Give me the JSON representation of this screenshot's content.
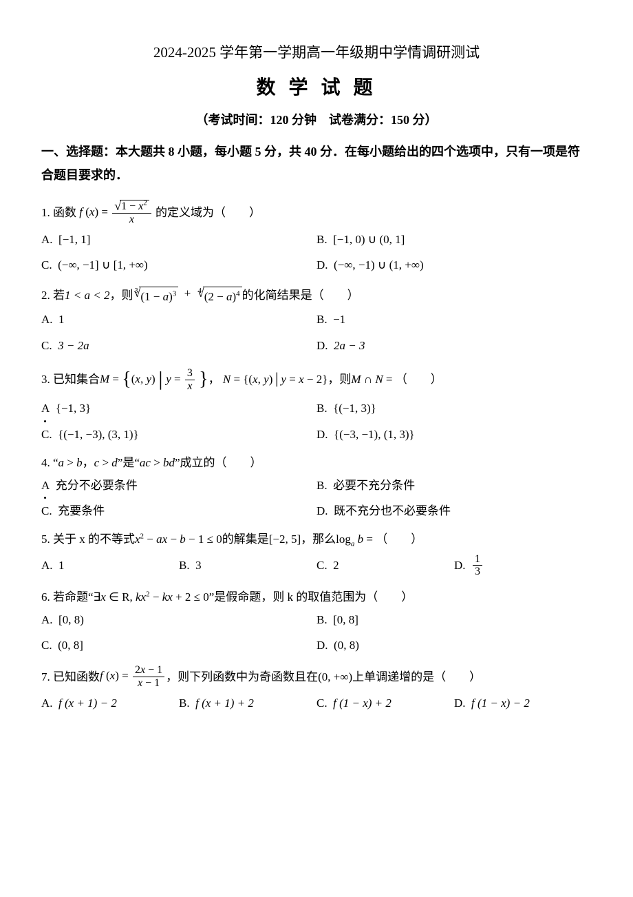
{
  "header": {
    "line1": "2024-2025 学年第一学期高一年级期中学情调研测试",
    "line2": "数 学 试 题",
    "line3": "（考试时间：120 分钟　试卷满分：150 分）",
    "section": "一、选择题：本大题共 8 小题，每小题 5 分，共 40 分．在每小题给出的四个选项中，只有一项是符合题目要求的．"
  },
  "q1": {
    "num": "1.",
    "pre": "函数",
    "post": "的定义域为（　　）",
    "A": "A.",
    "B": "B.",
    "C": "C.",
    "D": "D.",
    "optA": "[−1, 1]",
    "optB": "[−1, 0) ∪ (0, 1]",
    "optC": "(−∞, −1] ∪ [1, +∞)",
    "optD": "(−∞, −1) ∪ (1, +∞)"
  },
  "q2": {
    "num": "2.",
    "pre": "若 ",
    "cond": "1 < a < 2",
    "mid": "，则 ",
    "post": " 的化简结果是（　　）",
    "A": "A.",
    "B": "B.",
    "C": "C.",
    "D": "D.",
    "optA": "1",
    "optB": "−1",
    "optC": "3 − 2a",
    "optD": "2a − 3"
  },
  "q3": {
    "num": "3.",
    "pre": "已知集合 ",
    "mid1": "，",
    "mid2": "，则 ",
    "post": "（　　）",
    "A": "A",
    "B": "B.",
    "C": "C.",
    "D": "D.",
    "optA": "{−1, 3}",
    "optB": "{(−1, 3)}",
    "optC": "{(−1, −3), (3, 1)}",
    "optD": "{(−3, −1), (1, 3)}"
  },
  "q4": {
    "num": "4.",
    "text": "“a > b，c > d”是“ac > bd”成立的（　　）",
    "A": "A",
    "B": "B.",
    "C": "C.",
    "D": "D.",
    "optA": "充分不必要条件",
    "optB": "必要不充分条件",
    "optC": "充要条件",
    "optD": "既不充分也不必要条件"
  },
  "q5": {
    "num": "5.",
    "pre": "关于 x 的不等式 ",
    "ineq": "x² − ax − b − 1 ≤ 0",
    "mid": " 的解集是 ",
    "set": "[−2, 5]",
    "post1": "，那么 ",
    "post2": "（　　）",
    "A": "A.",
    "B": "B.",
    "C": "C.",
    "D": "D.",
    "optA": "1",
    "optB": "3",
    "optC": "2"
  },
  "q6": {
    "num": "6.",
    "pre": "若命题“",
    "prop": "∃x ∈ R, kx² − kx + 2 ≤ 0",
    "post": "”是假命题，则 k 的取值范围为（　　）",
    "A": "A.",
    "B": "B.",
    "C": "C.",
    "D": "D.",
    "optA": "[0, 8)",
    "optB": "[0, 8]",
    "optC": "(0, 8]",
    "optD": "(0, 8)"
  },
  "q7": {
    "num": "7.",
    "pre": "已知函数 ",
    "mid": "，则下列函数中为奇函数且在 ",
    "interval": "(0, +∞)",
    "post": " 上单调递增的是（　　）",
    "A": "A.",
    "B": "B.",
    "C": "C.",
    "D": "D.",
    "optA": "f (x + 1) − 2",
    "optB": "f (x + 1) + 2",
    "optC": "f (1 − x) + 2",
    "optD": "f (1 − x) − 2"
  }
}
